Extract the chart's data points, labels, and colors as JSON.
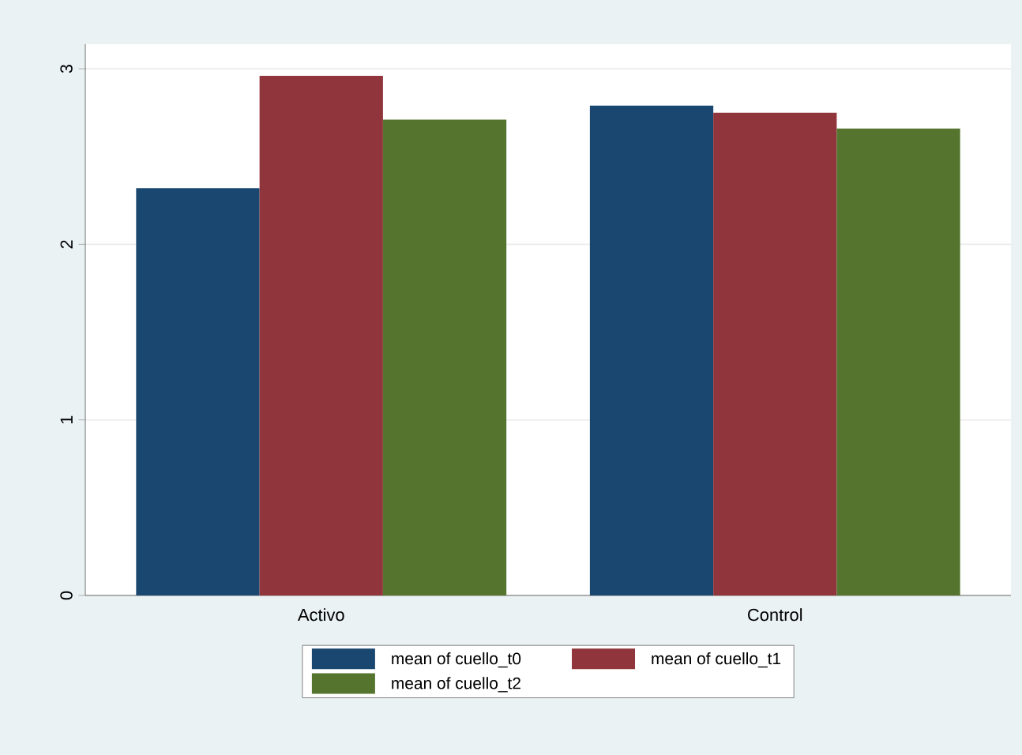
{
  "chart_data": {
    "type": "bar",
    "categories": [
      "Activo",
      "Control"
    ],
    "series": [
      {
        "name": "mean of cuello_t0",
        "color": "#1a476f",
        "values": [
          2.32,
          2.79
        ]
      },
      {
        "name": "mean of cuello_t1",
        "color": "#90353b",
        "values": [
          2.96,
          2.75
        ]
      },
      {
        "name": "mean of cuello_t2",
        "color": "#55752f",
        "values": [
          2.71,
          2.66
        ]
      }
    ],
    "ylim": [
      0,
      3.14
    ],
    "yticks": [
      0,
      1,
      2,
      3
    ],
    "grid": "y",
    "legend": "bottom"
  }
}
